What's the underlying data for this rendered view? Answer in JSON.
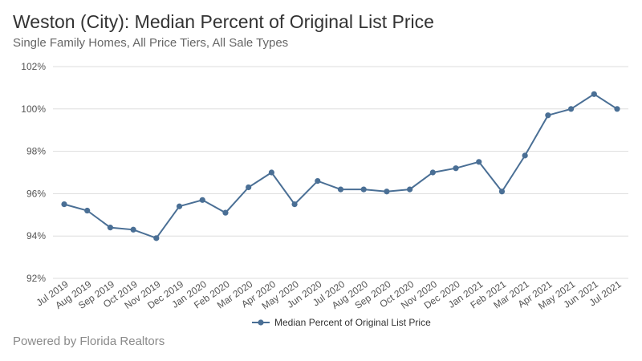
{
  "header": {
    "title": "Weston (City): Median Percent of Original List Price",
    "subtitle": "Single Family Homes, All Price Tiers, All Sale Types"
  },
  "footer": {
    "text": "Powered by Florida Realtors"
  },
  "chart_data": {
    "type": "line",
    "title": "Weston (City): Median Percent of Original List Price",
    "subtitle": "Single Family Homes, All Price Tiers, All Sale Types",
    "xlabel": "",
    "ylabel": "",
    "categories": [
      "Jul 2019",
      "Aug 2019",
      "Sep 2019",
      "Oct 2019",
      "Nov 2019",
      "Dec 2019",
      "Jan 2020",
      "Feb 2020",
      "Mar 2020",
      "Apr 2020",
      "May 2020",
      "Jun 2020",
      "Jul 2020",
      "Aug 2020",
      "Sep 2020",
      "Oct 2020",
      "Nov 2020",
      "Dec 2020",
      "Jan 2021",
      "Feb 2021",
      "Mar 2021",
      "Apr 2021",
      "May 2021",
      "Jun 2021",
      "Jul 2021"
    ],
    "series": [
      {
        "name": "Median Percent of Original List Price",
        "color": "#4a6f95",
        "values": [
          95.5,
          95.2,
          94.4,
          94.3,
          93.9,
          95.4,
          95.7,
          95.1,
          96.3,
          97.0,
          95.5,
          96.6,
          96.2,
          96.2,
          96.1,
          96.2,
          97.0,
          97.2,
          97.5,
          96.1,
          97.8,
          99.7,
          100.0,
          100.7,
          100.0
        ]
      }
    ],
    "ylim": [
      92,
      102
    ],
    "yticks": [
      92,
      94,
      96,
      98,
      100,
      102
    ],
    "ytick_labels": [
      "92%",
      "94%",
      "96%",
      "98%",
      "100%",
      "102%"
    ],
    "grid": true,
    "legend_position": "bottom-center"
  }
}
